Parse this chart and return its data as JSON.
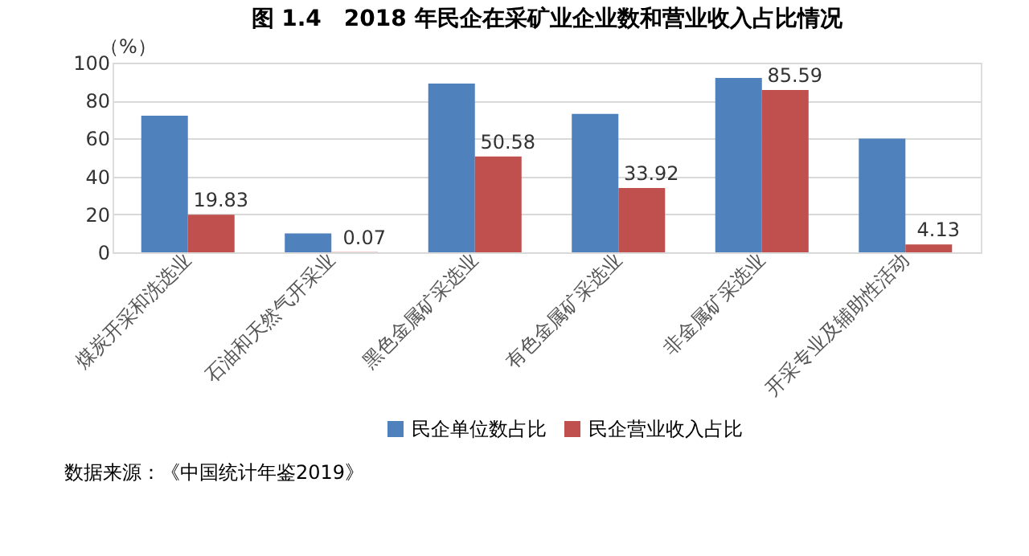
{
  "chart_data": {
    "type": "bar",
    "title": "图 1.4　2018 年民企在采矿业企业数和营业收入占比情况",
    "ylabel": "（%）",
    "categories": [
      "煤炭开采和洗选业",
      "石油和天然气开采业",
      "黑色金属矿采选业",
      "有色金属矿采选业",
      "非金属矿采选业",
      "开采专业及辅助性活动"
    ],
    "series": [
      {
        "name": "民企单位数占比",
        "color": "#4f81bd",
        "values": [
          72,
          10,
          89,
          73,
          92,
          60
        ]
      },
      {
        "name": "民企营业收入占比",
        "color": "#c0504d",
        "values": [
          19.83,
          0.07,
          50.58,
          33.92,
          85.59,
          4.13
        ],
        "value_labels": [
          "19.83",
          "0.07",
          "50.58",
          "33.92",
          "85.59",
          "4.13"
        ]
      }
    ],
    "ylim": [
      0,
      100
    ],
    "yticks": [
      0,
      20,
      40,
      60,
      80,
      100
    ],
    "grid": "y",
    "legend": "bottom",
    "annotations": [
      "数据来源：《中国统计年鉴2019》"
    ]
  }
}
